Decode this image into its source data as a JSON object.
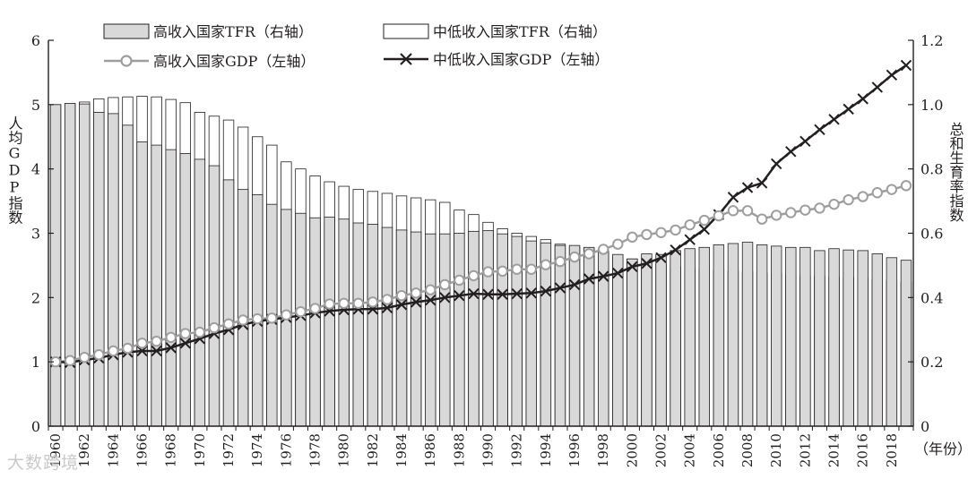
{
  "chart_data": {
    "type": "bar+line",
    "title": "",
    "xlabel": "（年份）",
    "ylabel_left": "人均GDP指数",
    "ylabel_right": "总和生育率指数",
    "ylim_left": [
      0,
      6
    ],
    "ylim_right": [
      0,
      1.2
    ],
    "yticks_left": [
      0,
      1,
      2,
      3,
      4,
      5,
      6
    ],
    "yticks_right": [
      "0",
      "0.2",
      "0.4",
      "0.6",
      "0.8",
      "1.0",
      "1.2"
    ],
    "years": [
      1960,
      1961,
      1962,
      1963,
      1964,
      1965,
      1966,
      1967,
      1968,
      1969,
      1970,
      1971,
      1972,
      1973,
      1974,
      1975,
      1976,
      1977,
      1978,
      1979,
      1980,
      1981,
      1982,
      1983,
      1984,
      1985,
      1986,
      1987,
      1988,
      1989,
      1990,
      1991,
      1992,
      1993,
      1994,
      1995,
      1996,
      1997,
      1998,
      1999,
      2000,
      2001,
      2002,
      2003,
      2004,
      2005,
      2006,
      2007,
      2008,
      2009,
      2010,
      2011,
      2012,
      2013,
      2014,
      2015,
      2016,
      2017,
      2018,
      2019
    ],
    "xtick_labels": [
      "1960",
      "1962",
      "1964",
      "1966",
      "1968",
      "1970",
      "1972",
      "1974",
      "1976",
      "1978",
      "1980",
      "1982",
      "1984",
      "1986",
      "1988",
      "1990",
      "1992",
      "1994",
      "1996",
      "1998",
      "2000",
      "2002",
      "2004",
      "2006",
      "2008",
      "2010",
      "2012",
      "2014",
      "2016",
      "2018"
    ],
    "series": [
      {
        "name": "高收入国家TFR（右轴）",
        "type": "bar",
        "axis": "right",
        "fill": "#d9d9d9",
        "values": [
          1.0,
          1.004,
          1.002,
          0.976,
          0.972,
          0.936,
          0.884,
          0.874,
          0.86,
          0.848,
          0.83,
          0.81,
          0.766,
          0.736,
          0.72,
          0.69,
          0.674,
          0.662,
          0.648,
          0.65,
          0.644,
          0.632,
          0.628,
          0.618,
          0.61,
          0.604,
          0.598,
          0.598,
          0.6,
          0.606,
          0.608,
          0.598,
          0.59,
          0.576,
          0.57,
          0.562,
          0.562,
          0.556,
          0.546,
          0.534,
          0.52,
          0.536,
          0.534,
          0.546,
          0.552,
          0.556,
          0.564,
          0.568,
          0.572,
          0.564,
          0.56,
          0.556,
          0.556,
          0.546,
          0.552,
          0.548,
          0.546,
          0.536,
          0.524,
          0.516
        ]
      },
      {
        "name": "中低收入国家TFR（右轴）",
        "type": "bar",
        "axis": "right",
        "fill": "#ffffff",
        "values": [
          1.0,
          1.002,
          1.008,
          1.018,
          1.022,
          1.024,
          1.026,
          1.024,
          1.016,
          1.006,
          0.976,
          0.964,
          0.952,
          0.93,
          0.9,
          0.874,
          0.822,
          0.8,
          0.778,
          0.76,
          0.746,
          0.736,
          0.73,
          0.724,
          0.716,
          0.71,
          0.704,
          0.696,
          0.672,
          0.658,
          0.634,
          0.614,
          0.6,
          0.59,
          0.58,
          0.566,
          0.558,
          0.552,
          0.54,
          0.526,
          0.52,
          0.51,
          0.504,
          0.496,
          0.49,
          0.488,
          0.486,
          0.482,
          0.48,
          0.476,
          0.474,
          0.47,
          0.468,
          0.466,
          0.464,
          0.462,
          0.46,
          0.456,
          0.452,
          0.448
        ]
      },
      {
        "name": "高收入国家GDP（左轴）",
        "type": "line",
        "axis": "left",
        "color": "#9e9e9e",
        "marker": "circle",
        "values": [
          1.0,
          1.02,
          1.07,
          1.11,
          1.17,
          1.21,
          1.29,
          1.32,
          1.38,
          1.44,
          1.46,
          1.53,
          1.59,
          1.65,
          1.67,
          1.68,
          1.73,
          1.78,
          1.83,
          1.9,
          1.91,
          1.91,
          1.93,
          1.97,
          2.03,
          2.07,
          2.12,
          2.2,
          2.27,
          2.34,
          2.4,
          2.41,
          2.44,
          2.44,
          2.51,
          2.56,
          2.63,
          2.68,
          2.75,
          2.83,
          2.94,
          2.98,
          3.01,
          3.05,
          3.13,
          3.2,
          3.27,
          3.35,
          3.35,
          3.22,
          3.28,
          3.32,
          3.36,
          3.39,
          3.45,
          3.52,
          3.57,
          3.63,
          3.68,
          3.74
        ]
      },
      {
        "name": "中低收入国家GDP（左轴）",
        "type": "line",
        "axis": "left",
        "color": "#231f20",
        "marker": "x",
        "values": [
          1.0,
          0.99,
          1.03,
          1.06,
          1.11,
          1.15,
          1.17,
          1.17,
          1.22,
          1.29,
          1.36,
          1.44,
          1.5,
          1.58,
          1.63,
          1.66,
          1.69,
          1.72,
          1.76,
          1.79,
          1.81,
          1.82,
          1.82,
          1.84,
          1.89,
          1.93,
          1.96,
          2.0,
          2.03,
          2.06,
          2.05,
          2.05,
          2.06,
          2.07,
          2.1,
          2.15,
          2.2,
          2.29,
          2.33,
          2.38,
          2.48,
          2.53,
          2.62,
          2.74,
          2.9,
          3.06,
          3.29,
          3.56,
          3.71,
          3.78,
          4.08,
          4.27,
          4.43,
          4.61,
          4.77,
          4.93,
          5.09,
          5.27,
          5.46,
          5.61
        ]
      }
    ],
    "legend": {
      "placement": "top-center",
      "items": [
        "高收入国家TFR（右轴）",
        "中低收入国家TFR（右轴）",
        "高收入国家GDP（左轴）",
        "中低收入国家GDP（左轴）"
      ]
    }
  },
  "watermark": "大数跨境"
}
